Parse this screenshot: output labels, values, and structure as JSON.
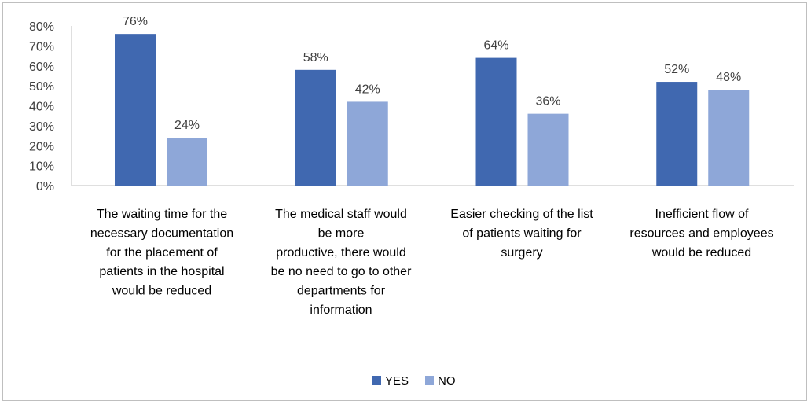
{
  "chart_data": {
    "type": "bar",
    "categories": [
      [
        "The waiting time for the",
        "necessary documentation",
        "for the placement of",
        "patients in the hospital",
        "would be reduced"
      ],
      [
        "The medical staff would",
        "be more",
        "productive, there would",
        "be no need to go to other",
        "departments for",
        "information"
      ],
      [
        "Easier checking of the list",
        "of patients waiting for",
        "surgery"
      ],
      [
        "Inefficient flow of",
        "resources and employees",
        "would be reduced"
      ]
    ],
    "series": [
      {
        "name": "YES",
        "values": [
          76,
          58,
          64,
          52
        ],
        "labels": [
          "76%",
          "58%",
          "64%",
          "52%"
        ],
        "color": "#4068b0"
      },
      {
        "name": "NO",
        "values": [
          24,
          42,
          36,
          48
        ],
        "labels": [
          "24%",
          "42%",
          "36%",
          "48%"
        ],
        "color": "#8ea7d8"
      }
    ],
    "ylim": [
      0,
      80
    ],
    "yticks": [
      "0%",
      "10%",
      "20%",
      "30%",
      "40%",
      "50%",
      "60%",
      "70%",
      "80%"
    ],
    "grid": false,
    "legend_position": "bottom"
  }
}
